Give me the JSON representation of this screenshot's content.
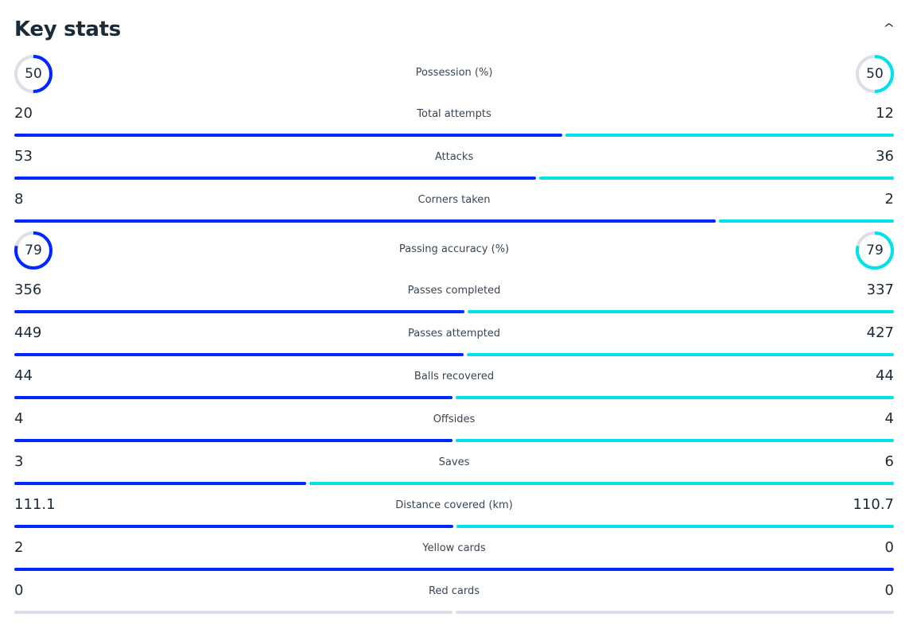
{
  "header": {
    "title": "Key stats",
    "collapse_icon": "chevron-up-icon"
  },
  "colors": {
    "home": "#0027ff",
    "away": "#00e1ec",
    "track": "#dcdee8"
  },
  "stats": [
    {
      "type": "ring",
      "label": "Possession (%)",
      "home": "50",
      "away": "50"
    },
    {
      "type": "bar",
      "label": "Total attempts",
      "home": "20",
      "away": "12"
    },
    {
      "type": "bar",
      "label": "Attacks",
      "home": "53",
      "away": "36"
    },
    {
      "type": "bar",
      "label": "Corners taken",
      "home": "8",
      "away": "2"
    },
    {
      "type": "ring",
      "label": "Passing accuracy (%)",
      "home": "79",
      "away": "79"
    },
    {
      "type": "bar",
      "label": "Passes completed",
      "home": "356",
      "away": "337"
    },
    {
      "type": "bar",
      "label": "Passes attempted",
      "home": "449",
      "away": "427"
    },
    {
      "type": "bar",
      "label": "Balls recovered",
      "home": "44",
      "away": "44"
    },
    {
      "type": "bar",
      "label": "Offsides",
      "home": "4",
      "away": "4"
    },
    {
      "type": "bar",
      "label": "Saves",
      "home": "3",
      "away": "6"
    },
    {
      "type": "bar",
      "label": "Distance covered (km)",
      "home": "111.1",
      "away": "110.7"
    },
    {
      "type": "bar",
      "label": "Yellow cards",
      "home": "2",
      "away": "0"
    },
    {
      "type": "bar",
      "label": "Red cards",
      "home": "0",
      "away": "0"
    }
  ]
}
